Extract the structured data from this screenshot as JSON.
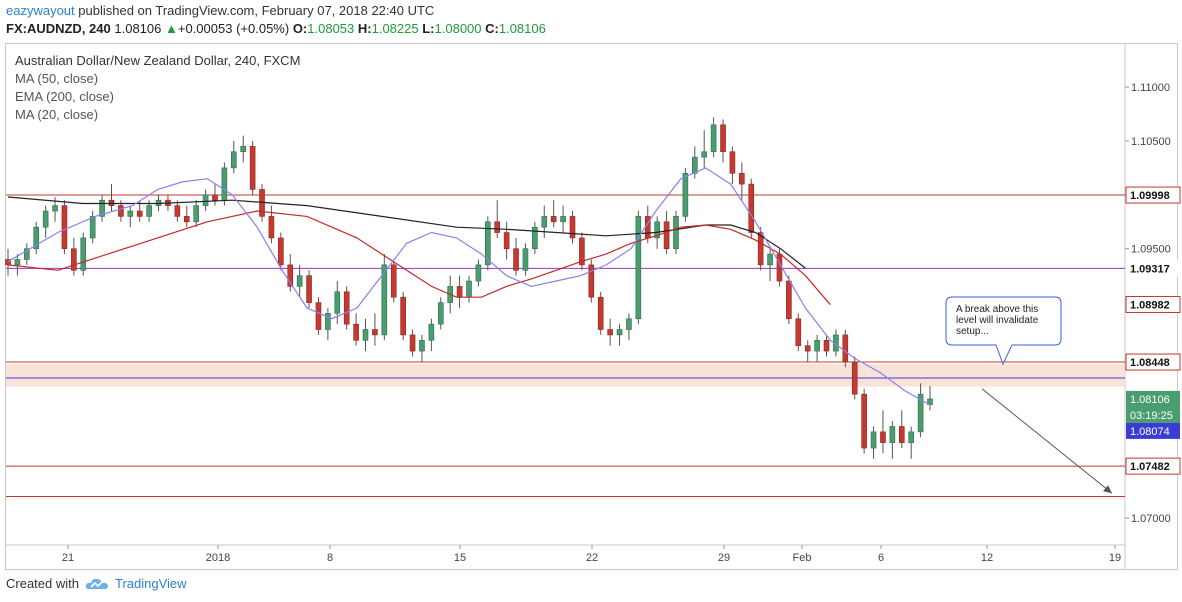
{
  "header": {
    "author": "eazywayout",
    "published_text": "published on TradingView.com, February 07, 2018 22:40 UTC",
    "symbol": "FX:AUDNZD, 240",
    "last": "1.08106",
    "change": "+0.00053 (+0.05%)",
    "o_label": "O:",
    "o": "1.08053",
    "h_label": "H:",
    "h": "1.08225",
    "l_label": "L:",
    "l": "1.08000",
    "c_label": "C:",
    "c": "1.08106"
  },
  "legend": {
    "title": "Australian Dollar/New Zealand Dollar, 240, FXCM",
    "ind1": "MA (50, close)",
    "ind2": "EMA (200, close)",
    "ind3": "MA (20, close)"
  },
  "footer": {
    "created_with": "Created with",
    "brand": "TradingView"
  },
  "colors": {
    "up": "#4a9d6e",
    "down": "#c43a31",
    "wick": "#555555",
    "ma50": "#c62828",
    "ema200": "#222222",
    "ma20": "#8b7ff0",
    "hline_red": "#c0392b",
    "hline_purple": "#9b30c9",
    "hline_blue": "#3b3bd6",
    "zone": "#f7dcd0"
  },
  "chart_data": {
    "type": "candlestick",
    "y_ticks": [
      "1.11000",
      "1.10500",
      "1.09500",
      "1.07000"
    ],
    "ylim": [
      1.0675,
      1.114
    ],
    "x_ticks": [
      "21",
      "2018",
      "8",
      "15",
      "22",
      "29",
      "Feb",
      "6",
      "12",
      "19"
    ],
    "candles": [
      [
        1.094,
        1.095,
        1.0925,
        1.0935
      ],
      [
        1.0935,
        1.0945,
        1.0925,
        1.094
      ],
      [
        1.094,
        1.0955,
        1.0935,
        1.095
      ],
      [
        1.095,
        1.0975,
        1.0945,
        1.097
      ],
      [
        1.097,
        1.099,
        1.096,
        1.0985
      ],
      [
        1.0985,
        1.0998,
        1.0975,
        1.099
      ],
      [
        1.099,
        1.0995,
        1.0945,
        1.095
      ],
      [
        1.095,
        1.096,
        1.0925,
        1.093
      ],
      [
        1.093,
        1.0965,
        1.0925,
        1.096
      ],
      [
        1.096,
        1.0985,
        1.0955,
        1.098
      ],
      [
        1.098,
        1.1,
        1.0975,
        1.0995
      ],
      [
        1.0995,
        1.101,
        1.0985,
        1.099
      ],
      [
        1.099,
        1.0995,
        1.0975,
        1.098
      ],
      [
        1.098,
        1.099,
        1.097,
        1.0985
      ],
      [
        1.0985,
        1.0995,
        1.0975,
        1.098
      ],
      [
        1.098,
        1.0995,
        1.0975,
        1.099
      ],
      [
        1.099,
        1.1,
        1.0985,
        1.0995
      ],
      [
        1.0995,
        1.1,
        1.0985,
        1.099
      ],
      [
        1.099,
        1.0995,
        1.0975,
        1.098
      ],
      [
        1.098,
        1.099,
        1.097,
        1.0975
      ],
      [
        1.0975,
        1.0995,
        1.097,
        1.099
      ],
      [
        1.099,
        1.1005,
        1.0985,
        1.1
      ],
      [
        1.1,
        1.101,
        1.099,
        1.0995
      ],
      [
        1.0995,
        1.103,
        1.099,
        1.1025
      ],
      [
        1.1025,
        1.105,
        1.102,
        1.104
      ],
      [
        1.104,
        1.1055,
        1.103,
        1.1045
      ],
      [
        1.1045,
        1.105,
        1.1,
        1.1005
      ],
      [
        1.1005,
        1.101,
        1.0975,
        1.098
      ],
      [
        1.098,
        1.099,
        1.0955,
        1.096
      ],
      [
        1.096,
        1.0965,
        1.093,
        1.0935
      ],
      [
        1.0935,
        1.0945,
        1.091,
        1.0915
      ],
      [
        1.0915,
        1.0935,
        1.0905,
        1.0925
      ],
      [
        1.0925,
        1.093,
        1.0895,
        1.09
      ],
      [
        1.09,
        1.0905,
        1.087,
        1.0875
      ],
      [
        1.0875,
        1.0895,
        1.0865,
        1.089
      ],
      [
        1.089,
        1.092,
        1.088,
        1.091
      ],
      [
        1.091,
        1.0915,
        1.0875,
        1.088
      ],
      [
        1.088,
        1.089,
        1.086,
        1.0865
      ],
      [
        1.0865,
        1.0885,
        1.0855,
        1.0875
      ],
      [
        1.0875,
        1.089,
        1.086,
        1.087
      ],
      [
        1.087,
        1.0945,
        1.0865,
        1.0935
      ],
      [
        1.0935,
        1.094,
        1.09,
        1.0905
      ],
      [
        1.0905,
        1.091,
        1.0865,
        1.087
      ],
      [
        1.087,
        1.0875,
        1.085,
        1.0855
      ],
      [
        1.0855,
        1.087,
        1.0845,
        1.0865
      ],
      [
        1.0865,
        1.0885,
        1.0855,
        1.088
      ],
      [
        1.088,
        1.0905,
        1.0875,
        1.09
      ],
      [
        1.09,
        1.0925,
        1.089,
        1.0915
      ],
      [
        1.0915,
        1.0925,
        1.0895,
        1.0905
      ],
      [
        1.0905,
        1.0925,
        1.09,
        1.092
      ],
      [
        1.092,
        1.094,
        1.0915,
        1.0935
      ],
      [
        1.0935,
        1.098,
        1.093,
        1.0975
      ],
      [
        1.0975,
        1.0995,
        1.096,
        1.0965
      ],
      [
        1.0965,
        1.0975,
        1.094,
        1.095
      ],
      [
        1.095,
        1.096,
        1.0925,
        1.093
      ],
      [
        1.093,
        1.0955,
        1.0925,
        1.095
      ],
      [
        1.095,
        1.0975,
        1.0945,
        1.097
      ],
      [
        1.097,
        1.099,
        1.096,
        1.098
      ],
      [
        1.098,
        1.0995,
        1.097,
        1.0975
      ],
      [
        1.0975,
        1.099,
        1.0965,
        1.098
      ],
      [
        1.098,
        1.0985,
        1.0955,
        1.096
      ],
      [
        1.096,
        1.0965,
        1.093,
        1.0935
      ],
      [
        1.0935,
        1.094,
        1.09,
        1.0905
      ],
      [
        1.0905,
        1.091,
        1.087,
        1.0875
      ],
      [
        1.0875,
        1.0885,
        1.086,
        1.087
      ],
      [
        1.087,
        1.088,
        1.086,
        1.0875
      ],
      [
        1.0875,
        1.089,
        1.0865,
        1.0885
      ],
      [
        1.0885,
        1.0985,
        1.088,
        1.098
      ],
      [
        1.098,
        1.099,
        1.0955,
        1.096
      ],
      [
        1.096,
        1.098,
        1.095,
        1.0975
      ],
      [
        1.0975,
        1.0985,
        1.0945,
        1.095
      ],
      [
        1.095,
        1.0985,
        1.0945,
        1.098
      ],
      [
        1.098,
        1.1025,
        1.0975,
        1.102
      ],
      [
        1.102,
        1.1045,
        1.1015,
        1.1035
      ],
      [
        1.1035,
        1.106,
        1.1025,
        1.104
      ],
      [
        1.104,
        1.1072,
        1.1035,
        1.1065
      ],
      [
        1.1065,
        1.107,
        1.103,
        1.104
      ],
      [
        1.104,
        1.1045,
        1.101,
        1.102
      ],
      [
        1.102,
        1.103,
        1.0995,
        1.101
      ],
      [
        1.101,
        1.1015,
        1.096,
        1.0965
      ],
      [
        1.0965,
        1.097,
        1.093,
        1.0935
      ],
      [
        1.0935,
        1.095,
        1.092,
        1.0945
      ],
      [
        1.0945,
        1.095,
        1.0915,
        1.092
      ],
      [
        1.092,
        1.0925,
        1.088,
        1.0885
      ],
      [
        1.0885,
        1.089,
        1.0855,
        1.086
      ],
      [
        1.086,
        1.0865,
        1.0845,
        1.0855
      ],
      [
        1.0855,
        1.087,
        1.0845,
        1.0865
      ],
      [
        1.0865,
        1.087,
        1.085,
        1.0855
      ],
      [
        1.0855,
        1.0875,
        1.085,
        1.087
      ],
      [
        1.087,
        1.0875,
        1.084,
        1.0845
      ],
      [
        1.0845,
        1.085,
        1.081,
        1.0815
      ],
      [
        1.0815,
        1.082,
        1.076,
        1.0765
      ],
      [
        1.0765,
        1.0785,
        1.0755,
        1.078
      ],
      [
        1.078,
        1.08,
        1.076,
        1.077
      ],
      [
        1.077,
        1.079,
        1.0755,
        1.0785
      ],
      [
        1.0785,
        1.08,
        1.0765,
        1.077
      ],
      [
        1.077,
        1.0785,
        1.0755,
        1.078
      ],
      [
        1.078,
        1.0825,
        1.0775,
        1.0815
      ],
      [
        1.08053,
        1.08225,
        1.08,
        1.08106
      ]
    ],
    "ma20": [
      [
        0,
        1.0938
      ],
      [
        20,
        1.0965
      ],
      [
        35,
        1.098
      ],
      [
        50,
        1.099
      ],
      [
        60,
        1.1005
      ],
      [
        70,
        1.1012
      ],
      [
        80,
        1.1015
      ],
      [
        90,
        1.1
      ],
      [
        100,
        1.097
      ],
      [
        110,
        1.093
      ],
      [
        120,
        1.0895
      ],
      [
        130,
        1.0885
      ],
      [
        140,
        1.0895
      ],
      [
        150,
        1.0925
      ],
      [
        160,
        1.0955
      ],
      [
        170,
        1.0965
      ],
      [
        180,
        1.096
      ],
      [
        190,
        1.0945
      ],
      [
        200,
        1.0925
      ],
      [
        210,
        1.0915
      ],
      [
        220,
        1.092
      ],
      [
        230,
        1.0925
      ],
      [
        240,
        1.0935
      ],
      [
        250,
        1.095
      ],
      [
        260,
        1.0985
      ],
      [
        270,
        1.1015
      ],
      [
        280,
        1.1025
      ],
      [
        290,
        1.101
      ],
      [
        300,
        1.0975
      ],
      [
        310,
        1.0935
      ],
      [
        320,
        1.0895
      ],
      [
        330,
        1.0865
      ],
      [
        340,
        1.0848
      ],
      [
        350,
        1.0835
      ],
      [
        360,
        1.0818
      ],
      [
        370,
        1.0805
      ]
    ],
    "ma50": [
      [
        0,
        1.0935
      ],
      [
        20,
        1.093
      ],
      [
        40,
        1.0945
      ],
      [
        60,
        1.096
      ],
      [
        80,
        1.0975
      ],
      [
        100,
        1.0985
      ],
      [
        120,
        1.098
      ],
      [
        140,
        1.096
      ],
      [
        150,
        1.0945
      ],
      [
        160,
        1.093
      ],
      [
        170,
        1.0915
      ],
      [
        180,
        1.0905
      ],
      [
        190,
        1.0905
      ],
      [
        200,
        1.0915
      ],
      [
        210,
        1.0922
      ],
      [
        220,
        1.093
      ],
      [
        230,
        1.0938
      ],
      [
        240,
        1.0945
      ],
      [
        250,
        1.0955
      ],
      [
        260,
        1.0962
      ],
      [
        270,
        1.097
      ],
      [
        280,
        1.0972
      ],
      [
        290,
        1.0968
      ],
      [
        300,
        1.0958
      ],
      [
        310,
        1.0945
      ],
      [
        320,
        1.0925
      ],
      [
        330,
        1.0898
      ]
    ],
    "ema200": [
      [
        0,
        1.0998
      ],
      [
        30,
        1.0992
      ],
      [
        60,
        1.0992
      ],
      [
        90,
        1.0995
      ],
      [
        120,
        1.099
      ],
      [
        150,
        1.098
      ],
      [
        180,
        1.097
      ],
      [
        200,
        1.0968
      ],
      [
        220,
        1.0965
      ],
      [
        240,
        1.0962
      ],
      [
        260,
        1.0965
      ],
      [
        280,
        1.0972
      ],
      [
        290,
        1.0972
      ],
      [
        300,
        1.0965
      ],
      [
        310,
        1.095
      ],
      [
        320,
        1.0932
      ]
    ],
    "hlines": [
      {
        "price": 1.09998,
        "label": "1.09998",
        "kind": "red"
      },
      {
        "price": 1.09317,
        "label": "1.09317",
        "kind": "purple"
      },
      {
        "price": 1.08982,
        "label": "1.08982",
        "kind": "red_label_only"
      },
      {
        "price": 1.08448,
        "label": "1.08448",
        "kind": "red"
      },
      {
        "price": 1.07482,
        "label": "1.07482",
        "kind": "red"
      },
      {
        "price": 1.072,
        "label": "",
        "kind": "red"
      }
    ],
    "blue_line": {
      "price": 1.083
    },
    "zone": {
      "from": 1.0822,
      "to": 1.0843
    },
    "price_labels": {
      "last": "1.08106",
      "countdown": "03:19:25",
      "blue": "1.08074"
    },
    "annotation": {
      "text": [
        "A break above this",
        "level will invalidate",
        "setup..."
      ]
    },
    "projection": {
      "from": [
        247,
        1.082
      ],
      "to": [
        287,
        1.0723
      ]
    }
  }
}
